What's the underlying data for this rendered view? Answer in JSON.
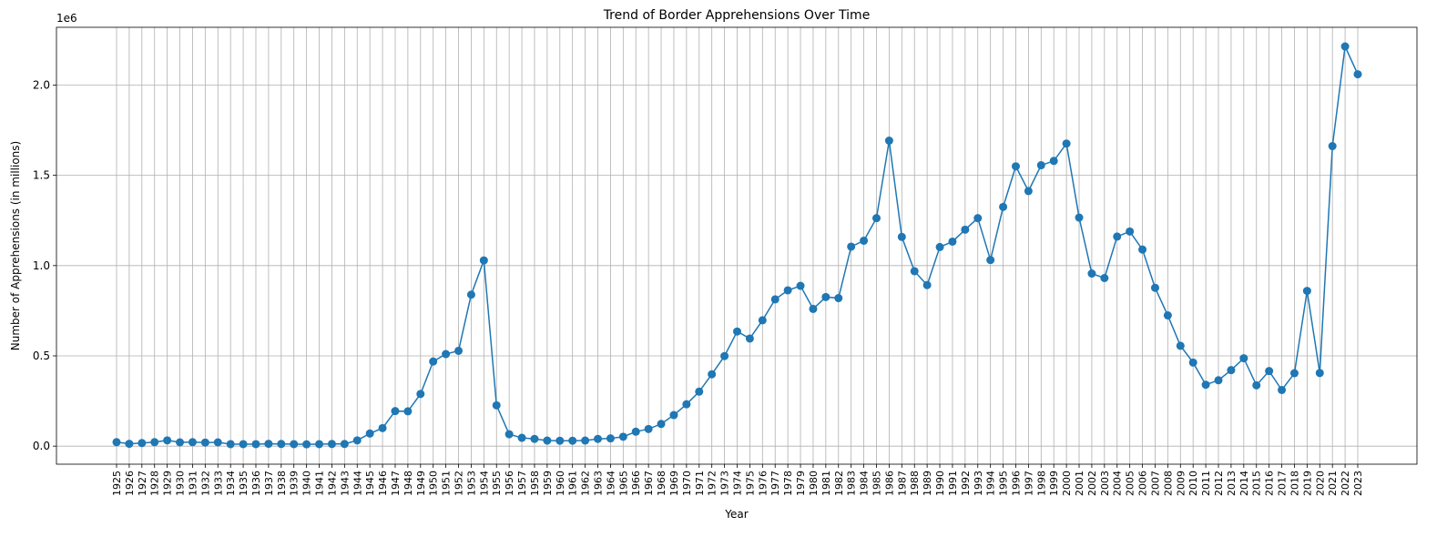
{
  "chart_data": {
    "type": "line",
    "title": "Trend of Border Apprehensions Over Time",
    "xlabel": "Year",
    "ylabel": "Number of Apprehensions (in millions)",
    "y_offset_label": "1e6",
    "ylim": [
      -0.1,
      2.32
    ],
    "yticks": [
      0.0,
      0.5,
      1.0,
      1.5,
      2.0
    ],
    "ytick_labels": [
      "0.0",
      "0.5",
      "1.0",
      "1.5",
      "2.0"
    ],
    "grid": true,
    "marker": "circle",
    "line_color": "#1f77b4",
    "series": [
      {
        "x": [
          "1925",
          "1926",
          "1927",
          "1928",
          "1929",
          "1930",
          "1931",
          "1932",
          "1933",
          "1934",
          "1935",
          "1936",
          "1937",
          "1938",
          "1939",
          "1940",
          "1941",
          "1942",
          "1943",
          "1944",
          "1945",
          "1946",
          "1947",
          "1948",
          "1949",
          "1950",
          "1951",
          "1952",
          "1953",
          "1954",
          "1955",
          "1956",
          "1957",
          "1958",
          "1959",
          "1960",
          "1961",
          "1962",
          "1963",
          "1964",
          "1965",
          "1966",
          "1967",
          "1968",
          "1969",
          "1970",
          "1971",
          "1972",
          "1973",
          "1974",
          "1975",
          "1976",
          "1977",
          "1978",
          "1979",
          "1980",
          "1981",
          "1982",
          "1983",
          "1984",
          "1985",
          "1986",
          "1987",
          "1988",
          "1989",
          "1990",
          "1991",
          "1992",
          "1993",
          "1994",
          "1995",
          "1996",
          "1997",
          "1998",
          "1999",
          "2000",
          "2001",
          "2002",
          "2003",
          "2004",
          "2005",
          "2006",
          "2007",
          "2008",
          "2009",
          "2010",
          "2011",
          "2012",
          "2013",
          "2014",
          "2015",
          "2016",
          "2017",
          "2018",
          "2019",
          "2020",
          "2021",
          "2022",
          "2023"
        ],
        "values": [
          0.022,
          0.013,
          0.017,
          0.022,
          0.032,
          0.021,
          0.022,
          0.02,
          0.021,
          0.011,
          0.011,
          0.011,
          0.013,
          0.012,
          0.011,
          0.01,
          0.011,
          0.012,
          0.012,
          0.032,
          0.07,
          0.1,
          0.194,
          0.193,
          0.289,
          0.469,
          0.51,
          0.528,
          0.839,
          1.029,
          0.226,
          0.066,
          0.046,
          0.04,
          0.031,
          0.03,
          0.03,
          0.031,
          0.04,
          0.043,
          0.052,
          0.08,
          0.095,
          0.123,
          0.172,
          0.232,
          0.302,
          0.398,
          0.499,
          0.635,
          0.596,
          0.697,
          0.813,
          0.863,
          0.888,
          0.76,
          0.826,
          0.82,
          1.105,
          1.138,
          1.263,
          1.692,
          1.159,
          0.969,
          0.892,
          1.103,
          1.133,
          1.199,
          1.263,
          1.031,
          1.325,
          1.55,
          1.413,
          1.556,
          1.58,
          1.676,
          1.266,
          0.956,
          0.931,
          1.161,
          1.189,
          1.089,
          0.877,
          0.724,
          0.556,
          0.463,
          0.34,
          0.365,
          0.421,
          0.487,
          0.337,
          0.416,
          0.311,
          0.404,
          0.86,
          0.405,
          1.662,
          2.214,
          2.06
        ]
      }
    ]
  }
}
